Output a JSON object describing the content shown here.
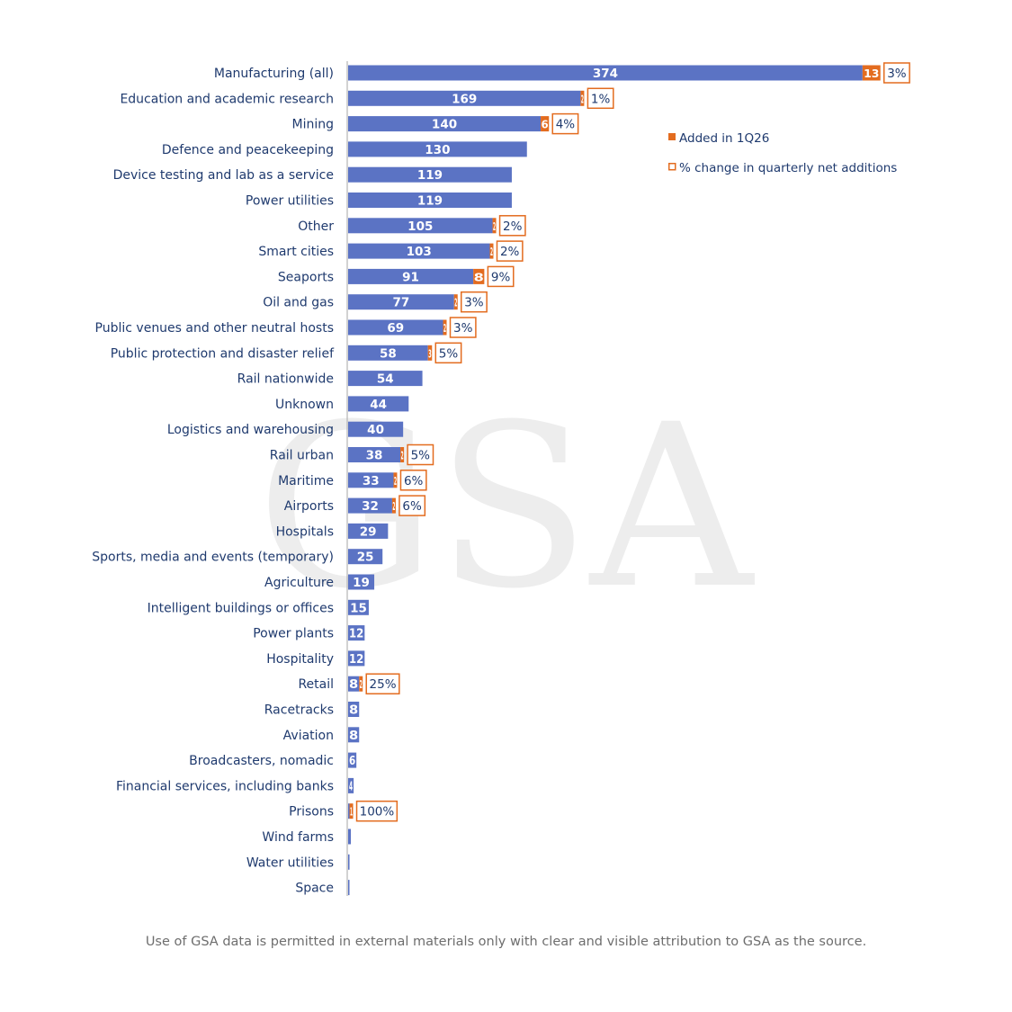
{
  "chart_data": {
    "type": "bar",
    "orientation": "horizontal",
    "stacked": true,
    "categories": [
      "Manufacturing (all)",
      "Education and academic research",
      "Mining",
      "Defence and peacekeeping",
      "Device testing and lab as a service",
      "Power utilities",
      "Other",
      "Smart cities",
      "Seaports",
      "Oil and gas",
      "Public venues and other neutral hosts",
      "Public protection and disaster relief",
      "Rail nationwide",
      "Unknown",
      "Logistics and warehousing",
      "Rail urban",
      "Maritime",
      "Airports",
      "Hospitals",
      "Sports, media and events (temporary)",
      "Agriculture",
      "Intelligent buildings or offices",
      "Power plants",
      "Hospitality",
      "Retail",
      "Racetracks",
      "Aviation",
      "Broadcasters, nomadic",
      "Financial services, including banks",
      "Prisons",
      "Wind farms",
      "Water utilities",
      "Space"
    ],
    "series": [
      {
        "name": "",
        "values": [
          374,
          169,
          140,
          130,
          119,
          119,
          105,
          103,
          91,
          77,
          69,
          58,
          54,
          44,
          40,
          38,
          33,
          32,
          29,
          25,
          19,
          15,
          12,
          12,
          8,
          8,
          8,
          6,
          4,
          1,
          2,
          1,
          0.5
        ]
      },
      {
        "name": "Added in 1Q26",
        "values": [
          13,
          2,
          6,
          0,
          0,
          0,
          2,
          2,
          8,
          2,
          2,
          3,
          0,
          0,
          0,
          2,
          2,
          2,
          0,
          0,
          0,
          0,
          0,
          0,
          2,
          0,
          0,
          0,
          0,
          1,
          0,
          0,
          0
        ]
      },
      {
        "name": "% change in quarterly net additions",
        "values": [
          "3%",
          "1%",
          "4%",
          "",
          "",
          "",
          "2%",
          "2%",
          "9%",
          "3%",
          "3%",
          "5%",
          "",
          "",
          "",
          "5%",
          "6%",
          "6%",
          "",
          "",
          "",
          "",
          "",
          "",
          "25%",
          "",
          "",
          "",
          "",
          "100%",
          "",
          "",
          ""
        ]
      }
    ],
    "xlim": [
      0,
      400
    ],
    "grid": false,
    "legend_position": "right",
    "colors": {
      "base": "#5b73c4",
      "added": "#e36c1f",
      "text": "#1f3a6e"
    }
  },
  "legend": {
    "added_label": "Added in 1Q26",
    "pct_label": "% change in quarterly net additions"
  },
  "watermark": "GSA",
  "footnote": "Use of GSA data is permitted in external materials only with clear and visible attribution to GSA as the source."
}
